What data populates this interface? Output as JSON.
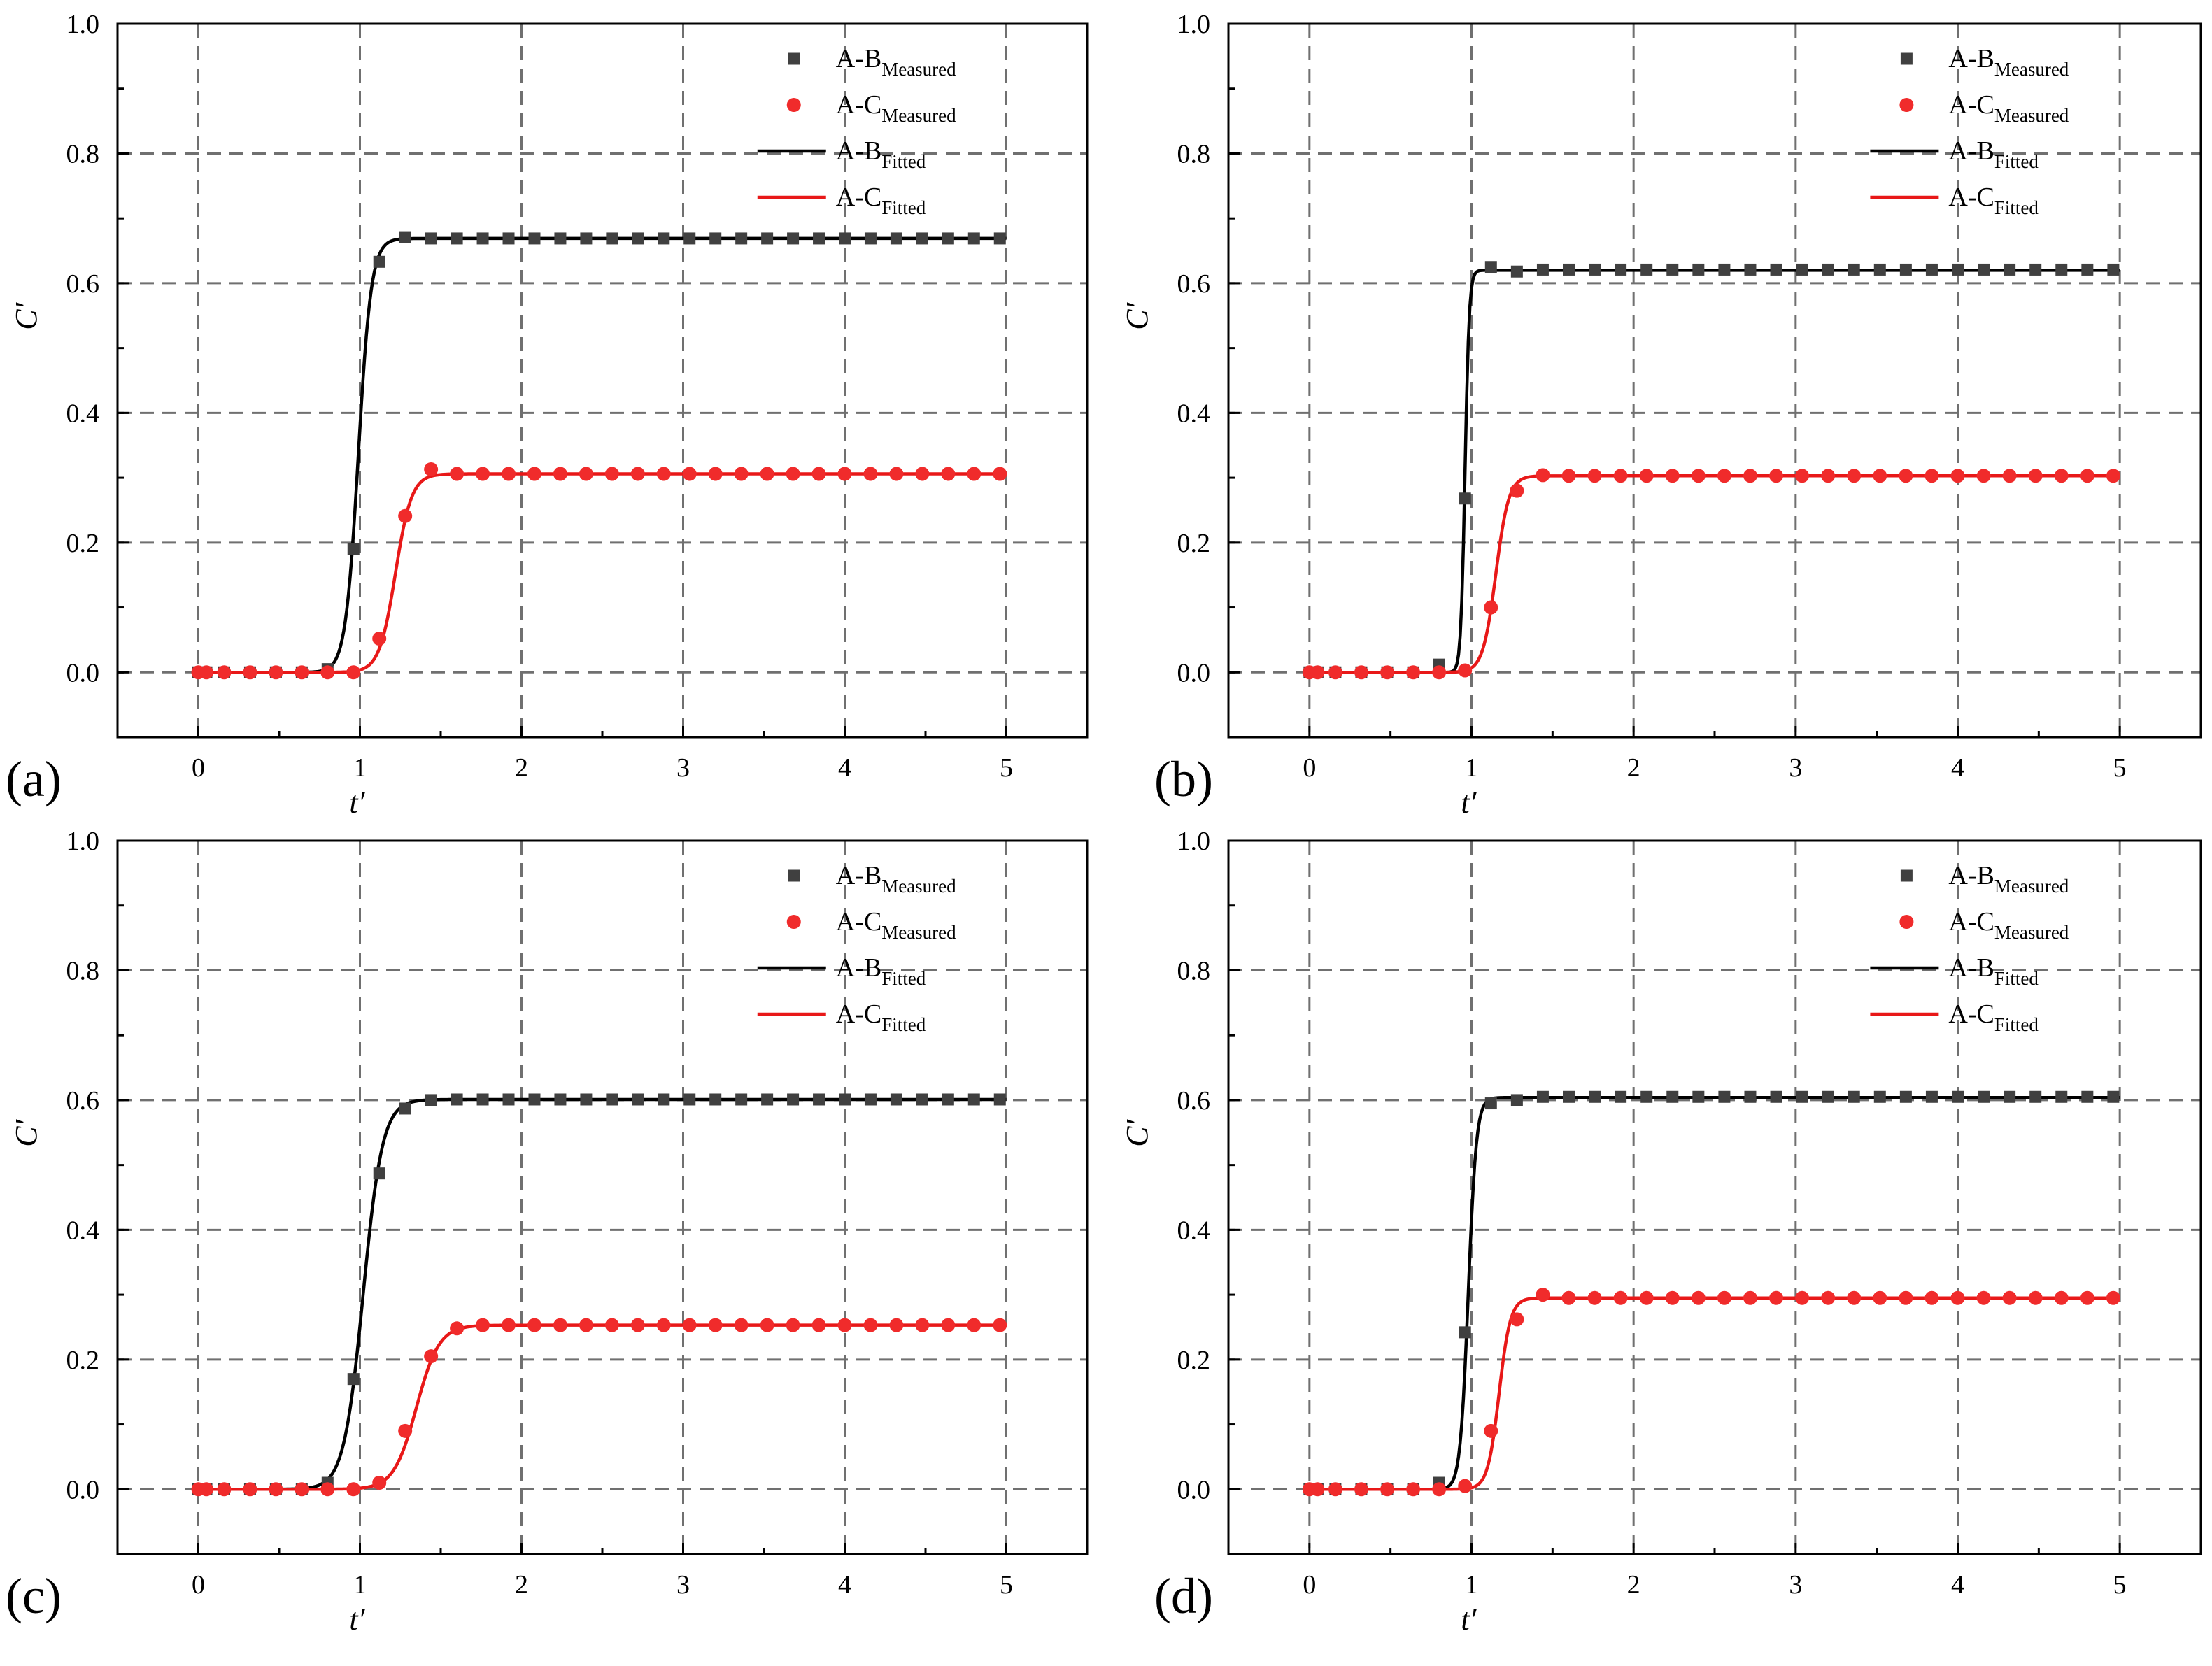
{
  "figure": {
    "background": "#ffffff"
  },
  "colors": {
    "measured_b": "#404040",
    "measured_c": "#f02b2b",
    "fitted_b": "#000000",
    "fitted_c": "#e81818",
    "grid": "#707070"
  },
  "chart_data": [
    {
      "panel_label": "(a)",
      "type": "line+scatter",
      "xlabel": "t′",
      "ylabel": "C′",
      "xlim": [
        -0.5,
        5.5
      ],
      "ylim": [
        -0.1,
        1.0
      ],
      "xticks": [
        "0",
        "1",
        "2",
        "3",
        "4",
        "5"
      ],
      "yticks": [
        "0.0",
        "0.2",
        "0.4",
        "0.6",
        "0.8",
        "1.0"
      ],
      "legend_position": "top-right",
      "legend": [
        {
          "kind": "square",
          "base": "A-B",
          "sub": "Measured"
        },
        {
          "kind": "circle",
          "base": "A-C",
          "sub": "Measured"
        },
        {
          "kind": "line-black",
          "base": "A-B",
          "sub": "Fitted"
        },
        {
          "kind": "line-red",
          "base": "A-C",
          "sub": "Fitted"
        }
      ],
      "series": [
        {
          "name": "A-B Measured",
          "marker": "square",
          "x": [
            0,
            0.05,
            0.16,
            0.32,
            0.48,
            0.64,
            0.8,
            0.96,
            1.12,
            1.28,
            1.44,
            1.6,
            1.76,
            1.92,
            2.08,
            2.24,
            2.4,
            2.56,
            2.72,
            2.88,
            3.04,
            3.2,
            3.36,
            3.52,
            3.68,
            3.84,
            4.0,
            4.16,
            4.32,
            4.48,
            4.64,
            4.8,
            4.96
          ],
          "y": [
            0,
            0,
            0,
            0,
            0,
            0,
            0.005,
            0.19,
            0.633,
            0.671,
            0.669,
            0.669,
            0.669,
            0.669,
            0.669,
            0.669,
            0.669,
            0.669,
            0.669,
            0.669,
            0.669,
            0.669,
            0.669,
            0.669,
            0.669,
            0.669,
            0.669,
            0.669,
            0.669,
            0.669,
            0.669,
            0.669,
            0.669
          ]
        },
        {
          "name": "A-C Measured",
          "marker": "circle",
          "x": [
            0,
            0.05,
            0.16,
            0.32,
            0.48,
            0.64,
            0.8,
            0.96,
            1.12,
            1.28,
            1.44,
            1.6,
            1.76,
            1.92,
            2.08,
            2.24,
            2.4,
            2.56,
            2.72,
            2.88,
            3.04,
            3.2,
            3.36,
            3.52,
            3.68,
            3.84,
            4.0,
            4.16,
            4.32,
            4.48,
            4.64,
            4.8,
            4.96
          ],
          "y": [
            0,
            0,
            0,
            0,
            0,
            0,
            0,
            0,
            0.052,
            0.241,
            0.313,
            0.306,
            0.306,
            0.306,
            0.306,
            0.306,
            0.306,
            0.306,
            0.306,
            0.306,
            0.306,
            0.306,
            0.306,
            0.306,
            0.306,
            0.306,
            0.306,
            0.306,
            0.306,
            0.306,
            0.306,
            0.306,
            0.306
          ]
        },
        {
          "name": "A-B Fitted",
          "kind": "sigmoid",
          "plateau": 0.669,
          "midpoint": 0.99,
          "scale": 0.04
        },
        {
          "name": "A-C Fitted",
          "kind": "sigmoid",
          "plateau": 0.306,
          "midpoint": 1.22,
          "scale": 0.05
        }
      ]
    },
    {
      "panel_label": "(b)",
      "type": "line+scatter",
      "xlabel": "t′",
      "ylabel": "C′",
      "xlim": [
        -0.5,
        5.5
      ],
      "ylim": [
        -0.1,
        1.0
      ],
      "xticks": [
        "0",
        "1",
        "2",
        "3",
        "4",
        "5"
      ],
      "yticks": [
        "0.0",
        "0.2",
        "0.4",
        "0.6",
        "0.8",
        "1.0"
      ],
      "legend_position": "top-right",
      "legend": [
        {
          "kind": "square",
          "base": "A-B",
          "sub": "Measured"
        },
        {
          "kind": "circle",
          "base": "A-C",
          "sub": "Measured"
        },
        {
          "kind": "line-black",
          "base": "A-B",
          "sub": "Fitted"
        },
        {
          "kind": "line-red",
          "base": "A-C",
          "sub": "Fitted"
        }
      ],
      "series": [
        {
          "name": "A-B Measured",
          "marker": "square",
          "x": [
            0,
            0.05,
            0.16,
            0.32,
            0.48,
            0.64,
            0.8,
            0.96,
            1.12,
            1.28,
            1.44,
            1.6,
            1.76,
            1.92,
            2.08,
            2.24,
            2.4,
            2.56,
            2.72,
            2.88,
            3.04,
            3.2,
            3.36,
            3.52,
            3.68,
            3.84,
            4.0,
            4.16,
            4.32,
            4.48,
            4.64,
            4.8,
            4.96
          ],
          "y": [
            0,
            0,
            0,
            0,
            0,
            0,
            0.012,
            0.268,
            0.625,
            0.618,
            0.621,
            0.621,
            0.621,
            0.621,
            0.621,
            0.621,
            0.621,
            0.621,
            0.621,
            0.621,
            0.621,
            0.621,
            0.621,
            0.621,
            0.621,
            0.621,
            0.621,
            0.621,
            0.621,
            0.621,
            0.621,
            0.621,
            0.621
          ]
        },
        {
          "name": "A-C Measured",
          "marker": "circle",
          "x": [
            0,
            0.05,
            0.16,
            0.32,
            0.48,
            0.64,
            0.8,
            0.96,
            1.12,
            1.28,
            1.44,
            1.6,
            1.76,
            1.92,
            2.08,
            2.24,
            2.4,
            2.56,
            2.72,
            2.88,
            3.04,
            3.2,
            3.36,
            3.52,
            3.68,
            3.84,
            4.0,
            4.16,
            4.32,
            4.48,
            4.64,
            4.8,
            4.96
          ],
          "y": [
            0,
            0,
            0,
            0,
            0,
            0,
            0,
            0.003,
            0.1,
            0.28,
            0.304,
            0.303,
            0.303,
            0.303,
            0.303,
            0.303,
            0.303,
            0.303,
            0.303,
            0.303,
            0.303,
            0.303,
            0.303,
            0.303,
            0.303,
            0.303,
            0.303,
            0.303,
            0.303,
            0.303,
            0.303,
            0.303,
            0.303
          ]
        },
        {
          "name": "A-B Fitted",
          "kind": "sigmoid",
          "plateau": 0.62,
          "midpoint": 0.96,
          "scale": 0.013
        },
        {
          "name": "A-C Fitted",
          "kind": "sigmoid",
          "plateau": 0.303,
          "midpoint": 1.15,
          "scale": 0.04
        }
      ]
    },
    {
      "panel_label": "(c)",
      "type": "line+scatter",
      "xlabel": "t′",
      "ylabel": "C′",
      "xlim": [
        -0.5,
        5.5
      ],
      "ylim": [
        -0.1,
        1.0
      ],
      "xticks": [
        "0",
        "1",
        "2",
        "3",
        "4",
        "5"
      ],
      "yticks": [
        "0.0",
        "0.2",
        "0.4",
        "0.6",
        "0.8",
        "1.0"
      ],
      "legend_position": "top-right",
      "legend": [
        {
          "kind": "square",
          "base": "A-B",
          "sub": "Measured"
        },
        {
          "kind": "circle",
          "base": "A-C",
          "sub": "Measured"
        },
        {
          "kind": "line-black",
          "base": "A-B",
          "sub": "Fitted"
        },
        {
          "kind": "line-red",
          "base": "A-C",
          "sub": "Fitted"
        }
      ],
      "series": [
        {
          "name": "A-B Measured",
          "marker": "square",
          "x": [
            0,
            0.05,
            0.16,
            0.32,
            0.48,
            0.64,
            0.8,
            0.96,
            1.12,
            1.28,
            1.44,
            1.6,
            1.76,
            1.92,
            2.08,
            2.24,
            2.4,
            2.56,
            2.72,
            2.88,
            3.04,
            3.2,
            3.36,
            3.52,
            3.68,
            3.84,
            4.0,
            4.16,
            4.32,
            4.48,
            4.64,
            4.8,
            4.96
          ],
          "y": [
            0,
            0,
            0,
            0,
            0,
            0,
            0.01,
            0.17,
            0.487,
            0.587,
            0.6,
            0.601,
            0.601,
            0.601,
            0.601,
            0.601,
            0.601,
            0.601,
            0.601,
            0.601,
            0.601,
            0.601,
            0.601,
            0.601,
            0.601,
            0.601,
            0.601,
            0.601,
            0.601,
            0.601,
            0.601,
            0.601,
            0.601
          ]
        },
        {
          "name": "A-C Measured",
          "marker": "circle",
          "x": [
            0,
            0.05,
            0.16,
            0.32,
            0.48,
            0.64,
            0.8,
            0.96,
            1.12,
            1.28,
            1.44,
            1.6,
            1.76,
            1.92,
            2.08,
            2.24,
            2.4,
            2.56,
            2.72,
            2.88,
            3.04,
            3.2,
            3.36,
            3.52,
            3.68,
            3.84,
            4.0,
            4.16,
            4.32,
            4.48,
            4.64,
            4.8,
            4.96
          ],
          "y": [
            0,
            0,
            0,
            0,
            0,
            0,
            0,
            0,
            0.01,
            0.09,
            0.205,
            0.248,
            0.253,
            0.253,
            0.253,
            0.253,
            0.253,
            0.253,
            0.253,
            0.253,
            0.253,
            0.253,
            0.253,
            0.253,
            0.253,
            0.253,
            0.253,
            0.253,
            0.253,
            0.253,
            0.253,
            0.253,
            0.253
          ]
        },
        {
          "name": "A-B Fitted",
          "kind": "sigmoid",
          "plateau": 0.601,
          "midpoint": 1.02,
          "scale": 0.06
        },
        {
          "name": "A-C Fitted",
          "kind": "sigmoid",
          "plateau": 0.253,
          "midpoint": 1.35,
          "scale": 0.07
        }
      ]
    },
    {
      "panel_label": "(d)",
      "type": "line+scatter",
      "xlabel": "t′",
      "ylabel": "C′",
      "xlim": [
        -0.5,
        5.5
      ],
      "ylim": [
        -0.1,
        1.0
      ],
      "xticks": [
        "0",
        "1",
        "2",
        "3",
        "4",
        "5"
      ],
      "yticks": [
        "0.0",
        "0.2",
        "0.4",
        "0.6",
        "0.8",
        "1.0"
      ],
      "legend_position": "top-right",
      "legend": [
        {
          "kind": "square",
          "base": "A-B",
          "sub": "Measured"
        },
        {
          "kind": "circle",
          "base": "A-C",
          "sub": "Measured"
        },
        {
          "kind": "line-black",
          "base": "A-B",
          "sub": "Fitted"
        },
        {
          "kind": "line-red",
          "base": "A-C",
          "sub": "Fitted"
        }
      ],
      "series": [
        {
          "name": "A-B Measured",
          "marker": "square",
          "x": [
            0,
            0.05,
            0.16,
            0.32,
            0.48,
            0.64,
            0.8,
            0.96,
            1.12,
            1.28,
            1.44,
            1.6,
            1.76,
            1.92,
            2.08,
            2.24,
            2.4,
            2.56,
            2.72,
            2.88,
            3.04,
            3.2,
            3.36,
            3.52,
            3.68,
            3.84,
            4.0,
            4.16,
            4.32,
            4.48,
            4.64,
            4.8,
            4.96
          ],
          "y": [
            0,
            0,
            0,
            0,
            0,
            0,
            0.01,
            0.242,
            0.595,
            0.6,
            0.605,
            0.605,
            0.605,
            0.605,
            0.605,
            0.605,
            0.605,
            0.605,
            0.605,
            0.605,
            0.605,
            0.605,
            0.605,
            0.605,
            0.605,
            0.605,
            0.605,
            0.605,
            0.605,
            0.605,
            0.605,
            0.605,
            0.605
          ]
        },
        {
          "name": "A-C Measured",
          "marker": "circle",
          "x": [
            0,
            0.05,
            0.16,
            0.32,
            0.48,
            0.64,
            0.8,
            0.96,
            1.12,
            1.28,
            1.44,
            1.6,
            1.76,
            1.92,
            2.08,
            2.24,
            2.4,
            2.56,
            2.72,
            2.88,
            3.04,
            3.2,
            3.36,
            3.52,
            3.68,
            3.84,
            4.0,
            4.16,
            4.32,
            4.48,
            4.64,
            4.8,
            4.96
          ],
          "y": [
            0,
            0,
            0,
            0,
            0,
            0,
            0,
            0.005,
            0.09,
            0.262,
            0.3,
            0.295,
            0.295,
            0.295,
            0.295,
            0.295,
            0.295,
            0.295,
            0.295,
            0.295,
            0.295,
            0.295,
            0.295,
            0.295,
            0.295,
            0.295,
            0.295,
            0.295,
            0.295,
            0.295,
            0.295,
            0.295,
            0.295
          ]
        },
        {
          "name": "A-B Fitted",
          "kind": "sigmoid",
          "plateau": 0.604,
          "midpoint": 0.98,
          "scale": 0.025
        },
        {
          "name": "A-C Fitted",
          "kind": "sigmoid",
          "plateau": 0.295,
          "midpoint": 1.17,
          "scale": 0.035
        }
      ]
    }
  ]
}
